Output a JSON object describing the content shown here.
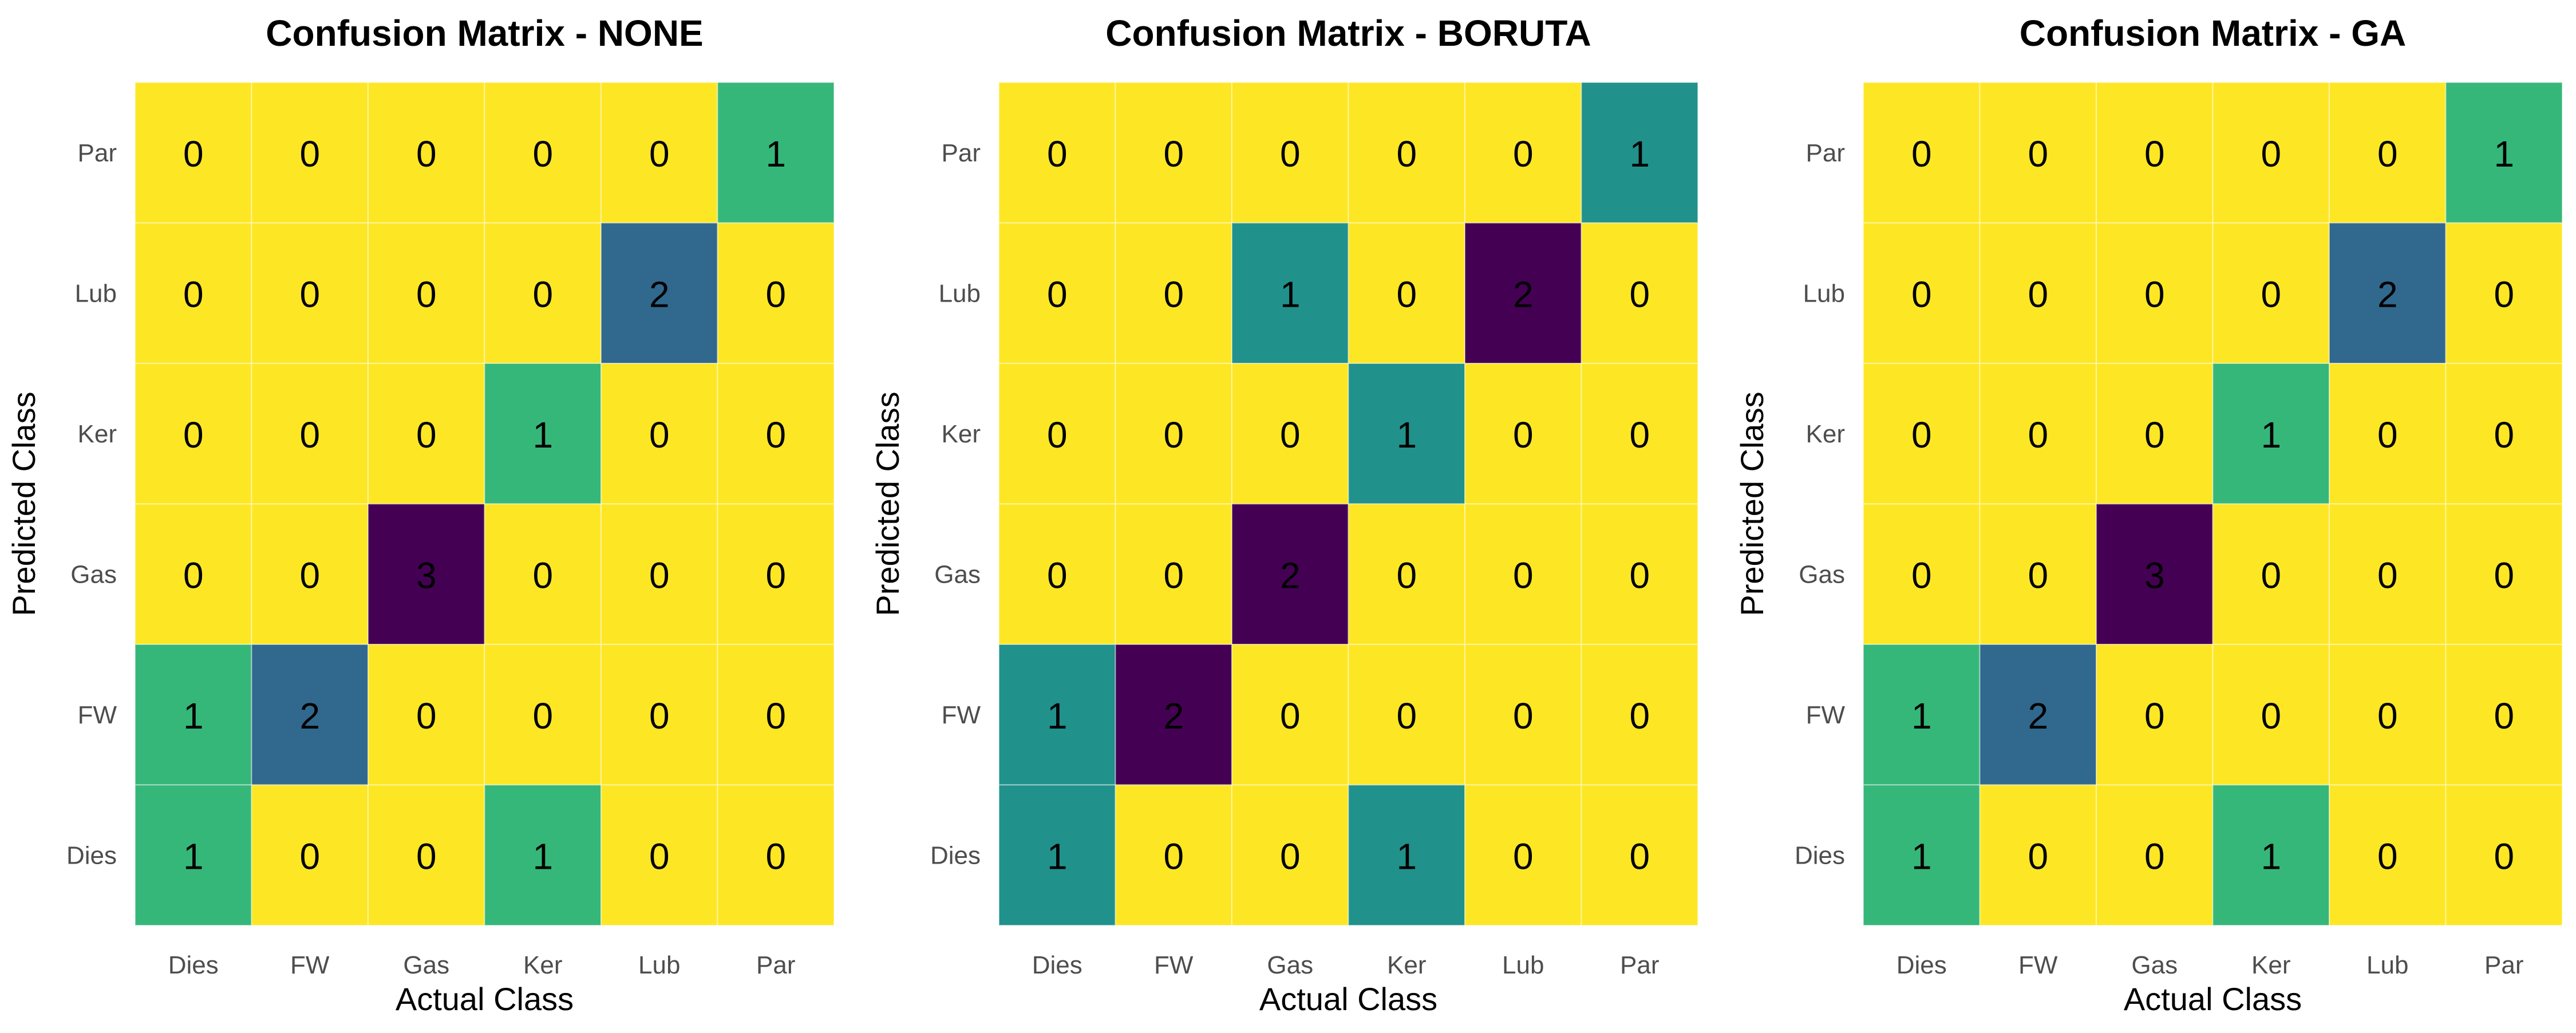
{
  "chart_data": [
    {
      "type": "heatmap",
      "title": "Confusion Matrix - NONE",
      "xlabel": "Actual Class",
      "ylabel": "Predicted Class",
      "x_categories": [
        "Dies",
        "FW",
        "Gas",
        "Ker",
        "Lub",
        "Par"
      ],
      "y_categories": [
        "Par",
        "Lub",
        "Ker",
        "Gas",
        "FW",
        "Dies"
      ],
      "values": [
        [
          0,
          0,
          0,
          0,
          0,
          1
        ],
        [
          0,
          0,
          0,
          0,
          2,
          0
        ],
        [
          0,
          0,
          0,
          1,
          0,
          0
        ],
        [
          0,
          0,
          3,
          0,
          0,
          0
        ],
        [
          1,
          2,
          0,
          0,
          0,
          0
        ],
        [
          1,
          0,
          0,
          1,
          0,
          0
        ]
      ],
      "value_range": [
        0,
        3
      ],
      "colors": {
        "0": "#FDE725",
        "1": "#35B779",
        "2": "#31688E",
        "3": "#440154"
      }
    },
    {
      "type": "heatmap",
      "title": "Confusion Matrix - BORUTA",
      "xlabel": "Actual Class",
      "ylabel": "Predicted Class",
      "x_categories": [
        "Dies",
        "FW",
        "Gas",
        "Ker",
        "Lub",
        "Par"
      ],
      "y_categories": [
        "Par",
        "Lub",
        "Ker",
        "Gas",
        "FW",
        "Dies"
      ],
      "values": [
        [
          0,
          0,
          0,
          0,
          0,
          1
        ],
        [
          0,
          0,
          1,
          0,
          2,
          0
        ],
        [
          0,
          0,
          0,
          1,
          0,
          0
        ],
        [
          0,
          0,
          2,
          0,
          0,
          0
        ],
        [
          1,
          2,
          0,
          0,
          0,
          0
        ],
        [
          1,
          0,
          0,
          1,
          0,
          0
        ]
      ],
      "value_range": [
        0,
        2
      ],
      "colors": {
        "0": "#FDE725",
        "1": "#21918C",
        "2": "#440154"
      }
    },
    {
      "type": "heatmap",
      "title": "Confusion Matrix - GA",
      "xlabel": "Actual Class",
      "ylabel": "Predicted Class",
      "x_categories": [
        "Dies",
        "FW",
        "Gas",
        "Ker",
        "Lub",
        "Par"
      ],
      "y_categories": [
        "Par",
        "Lub",
        "Ker",
        "Gas",
        "FW",
        "Dies"
      ],
      "values": [
        [
          0,
          0,
          0,
          0,
          0,
          1
        ],
        [
          0,
          0,
          0,
          0,
          2,
          0
        ],
        [
          0,
          0,
          0,
          1,
          0,
          0
        ],
        [
          0,
          0,
          3,
          0,
          0,
          0
        ],
        [
          1,
          2,
          0,
          0,
          0,
          0
        ],
        [
          1,
          0,
          0,
          1,
          0,
          0
        ]
      ],
      "value_range": [
        0,
        3
      ],
      "colors": {
        "0": "#FDE725",
        "1": "#35B779",
        "2": "#31688E",
        "3": "#440154"
      }
    }
  ]
}
